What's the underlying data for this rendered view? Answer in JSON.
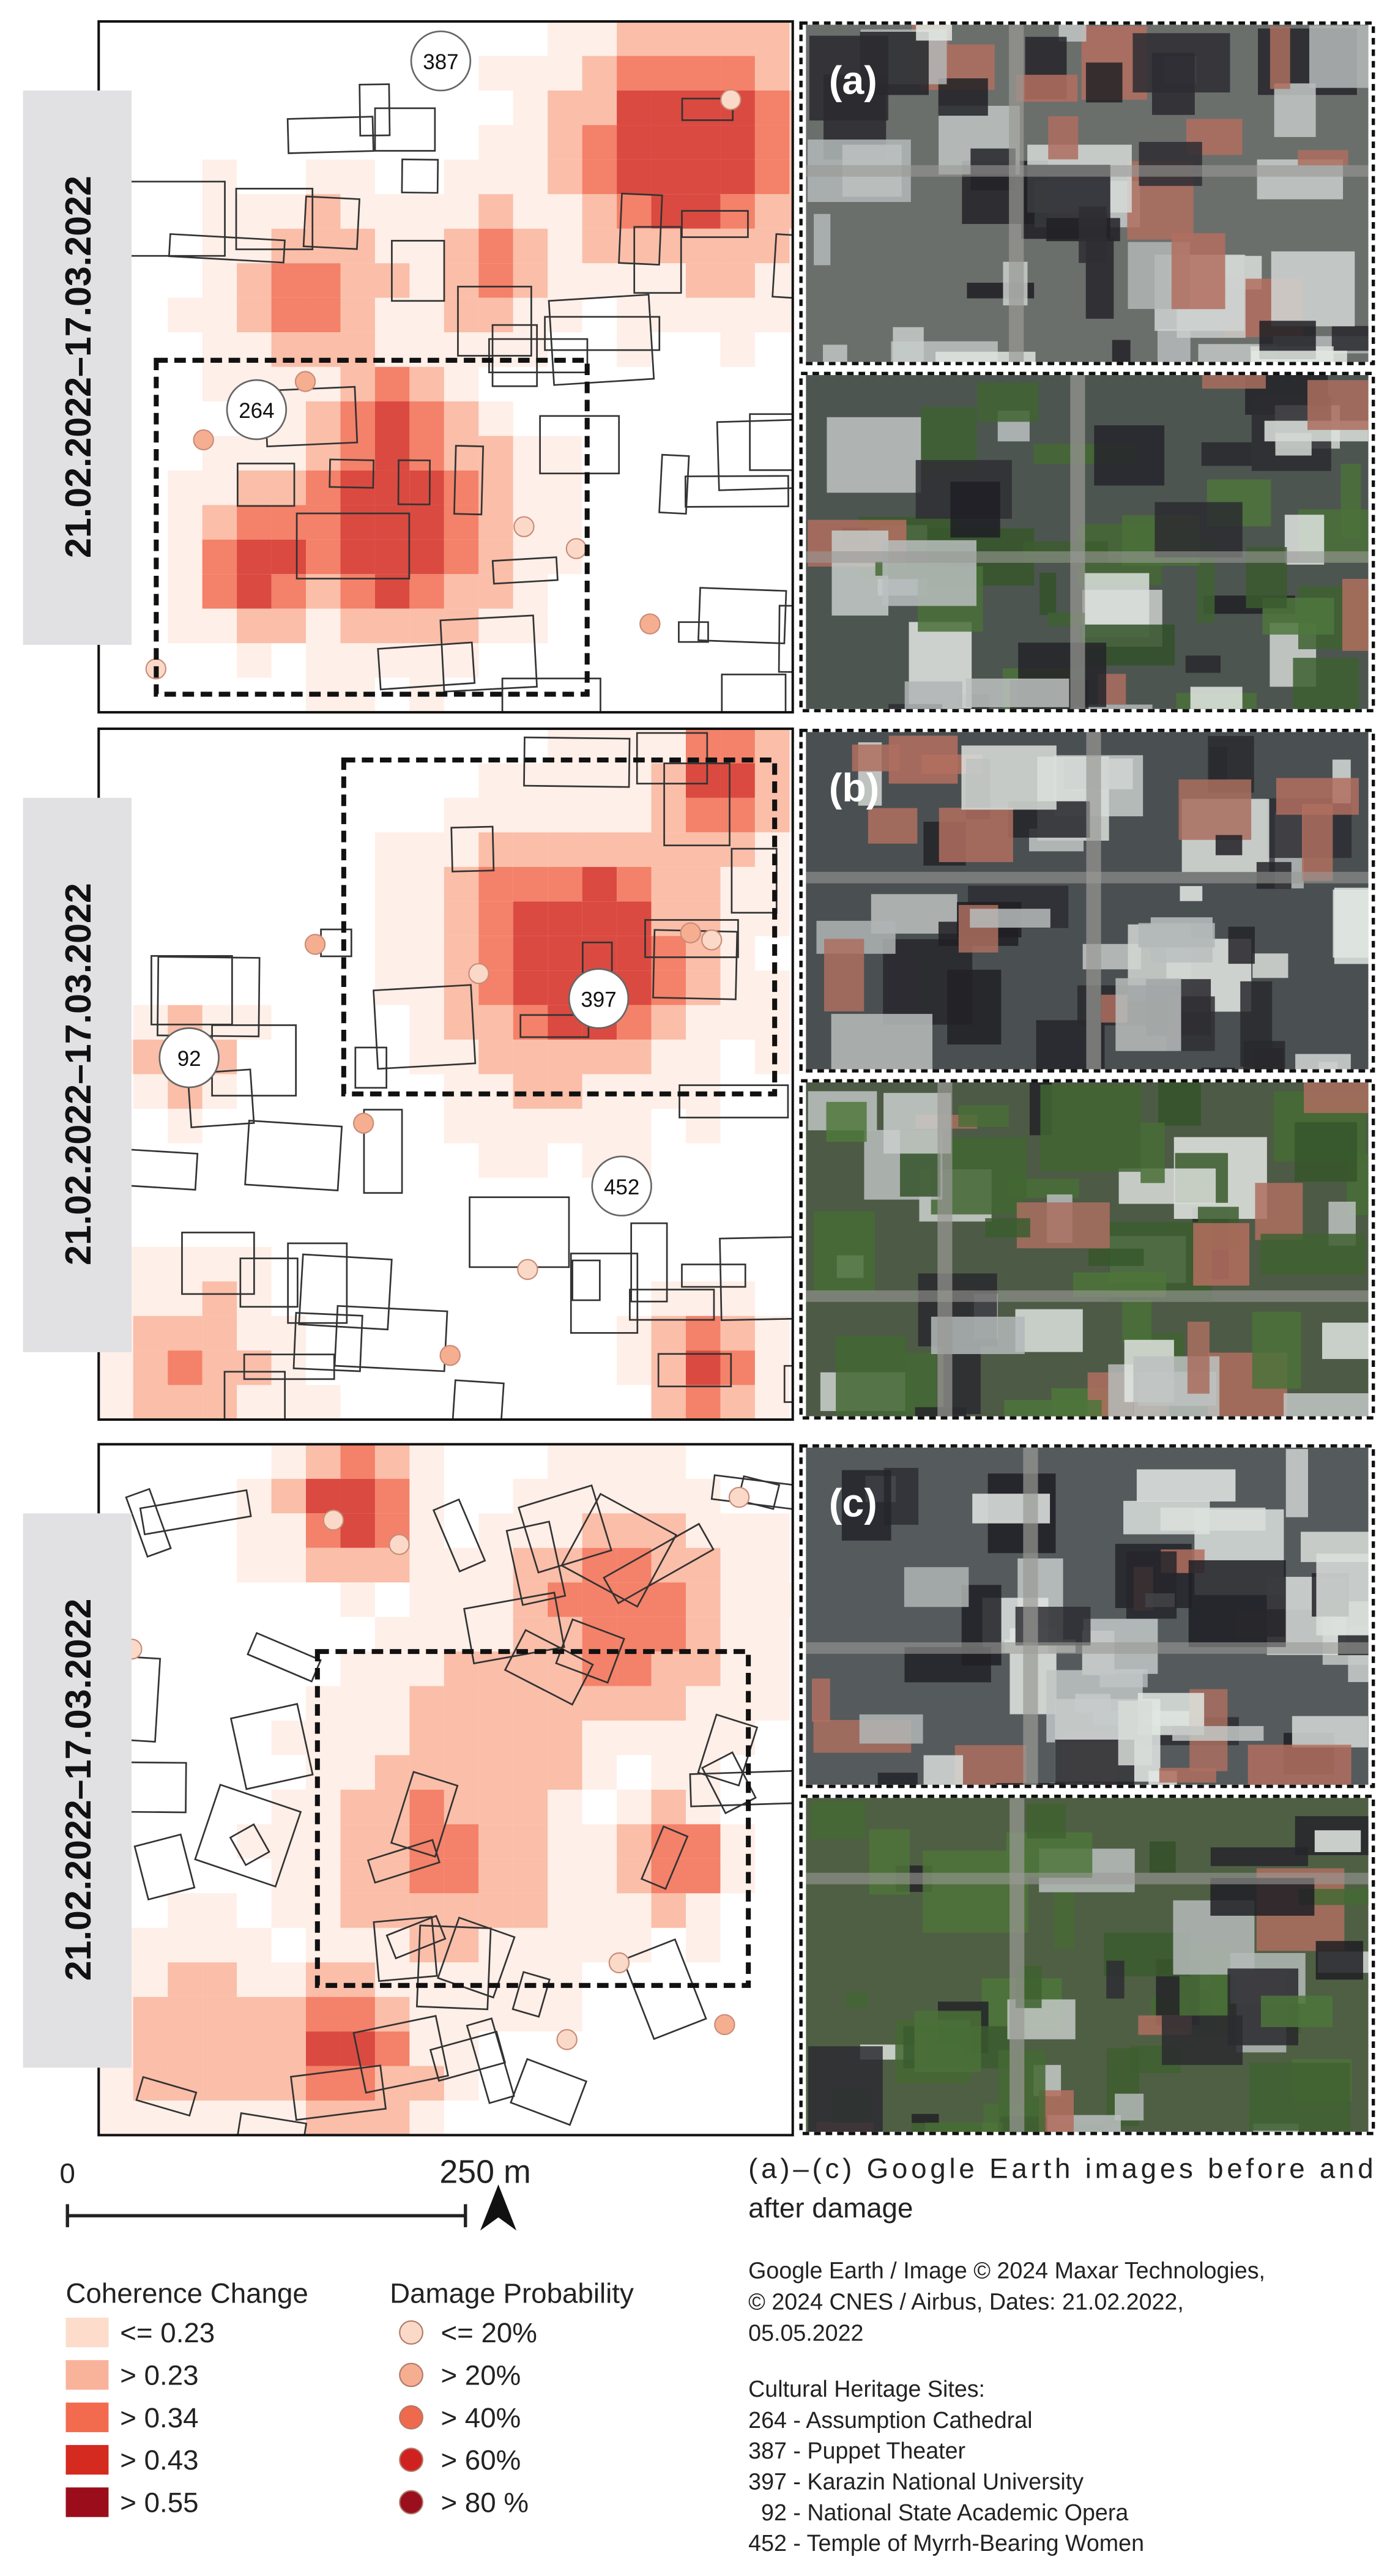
{
  "panels": [
    {
      "date_label": "21.02.2022–17.03.2022",
      "image_label": "(a)",
      "sites": [
        "387",
        "264"
      ]
    },
    {
      "date_label": "21.02.2022–17.03.2022",
      "image_label": "(b)",
      "sites": [
        "397",
        "92",
        "452"
      ]
    },
    {
      "date_label": "21.02.2022–17.03.2022",
      "image_label": "(c)",
      "sites": []
    }
  ],
  "scale_bar": {
    "start": "0",
    "end": "250 m"
  },
  "caption": [
    "(a)–(c) Google Earth images before and",
    "after damage"
  ],
  "credits": [
    "Google Earth / Image © 2024 Maxar Technologies,",
    "© 2024 CNES / Airbus, Dates: 21.02.2022,",
    "05.05.2022"
  ],
  "legend": {
    "coherence": {
      "title": "Coherence Change",
      "items": [
        {
          "label": "<= 0.23",
          "color": "#fddccc"
        },
        {
          "label": "> 0.23",
          "color": "#f9b39a"
        },
        {
          "label": "> 0.34",
          "color": "#f26b4f"
        },
        {
          "label": "> 0.43",
          "color": "#d42a20"
        },
        {
          "label": "> 0.55",
          "color": "#9c0d1c"
        }
      ]
    },
    "damage": {
      "title": "Damage Probability",
      "items": [
        {
          "label": "<= 20%",
          "color": "#fbd9c8"
        },
        {
          "label": "> 20%",
          "color": "#f6ae91"
        },
        {
          "label": "> 40%",
          "color": "#ef6a4c"
        },
        {
          "label": "> 60%",
          "color": "#cf2220"
        },
        {
          "label": "> 80 %",
          "color": "#990f1e"
        }
      ]
    }
  },
  "heritage": {
    "title": "Cultural Heritage Sites:",
    "items": [
      "264 - Assumption Cathedral",
      "387 - Puppet Theater",
      "397 - Karazin National University",
      "  92 - National State Academic Opera",
      "452 - Temple of Myrrh-Bearing Women"
    ]
  }
}
